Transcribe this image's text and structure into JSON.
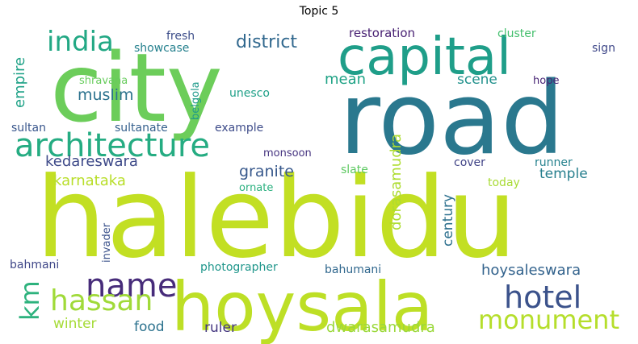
{
  "chart_data": {
    "type": "wordcloud",
    "title": "Topic 5",
    "words": [
      {
        "text": "halebidu",
        "color": "#c2df23"
      },
      {
        "text": "road",
        "color": "#2a788e"
      },
      {
        "text": "city",
        "color": "#6ccd5a"
      },
      {
        "text": "hoysala",
        "color": "#bddf26"
      },
      {
        "text": "capital",
        "color": "#1f9e89"
      },
      {
        "text": "architecture",
        "color": "#25ac82"
      },
      {
        "text": "name",
        "color": "#472c7a"
      },
      {
        "text": "india",
        "color": "#22a884"
      },
      {
        "text": "hassan",
        "color": "#a0da39"
      },
      {
        "text": "hotel",
        "color": "#3b528b"
      },
      {
        "text": "monument",
        "color": "#b5de2b"
      },
      {
        "text": "km",
        "color": "#2db27d"
      },
      {
        "text": "district",
        "color": "#31688e"
      },
      {
        "text": "granite",
        "color": "#38598c"
      },
      {
        "text": "muslim",
        "color": "#2c728e"
      },
      {
        "text": "kedareswara",
        "color": "#3e4a89"
      },
      {
        "text": "karnataka",
        "color": "#b8de29"
      },
      {
        "text": "mean",
        "color": "#20a386"
      },
      {
        "text": "scene",
        "color": "#21918c"
      },
      {
        "text": "temple",
        "color": "#277f8e"
      },
      {
        "text": "hoysaleswara",
        "color": "#33638d"
      },
      {
        "text": "dwarasamudra",
        "color": "#9bd93c"
      },
      {
        "text": "dorasamudra",
        "color": "#addc30"
      },
      {
        "text": "century",
        "color": "#2d708e"
      },
      {
        "text": "empire",
        "color": "#1fa287"
      },
      {
        "text": "food",
        "color": "#2c728e"
      },
      {
        "text": "ruler",
        "color": "#453781"
      },
      {
        "text": "winter",
        "color": "#a5db36"
      },
      {
        "text": "restoration",
        "color": "#482173"
      },
      {
        "text": "cluster",
        "color": "#46c06f"
      },
      {
        "text": "sign",
        "color": "#3f4889"
      },
      {
        "text": "fresh",
        "color": "#3d4e8a"
      },
      {
        "text": "showcase",
        "color": "#26818e"
      },
      {
        "text": "shravana",
        "color": "#67cc5c"
      },
      {
        "text": "belgola",
        "color": "#1f9a8a"
      },
      {
        "text": "unesco",
        "color": "#1fa088"
      },
      {
        "text": "hope",
        "color": "#482475"
      },
      {
        "text": "sultan",
        "color": "#39568c"
      },
      {
        "text": "sultanate",
        "color": "#35608d"
      },
      {
        "text": "example",
        "color": "#3e4c8a"
      },
      {
        "text": "monsoon",
        "color": "#463480"
      },
      {
        "text": "cover",
        "color": "#414487"
      },
      {
        "text": "runner",
        "color": "#26828e"
      },
      {
        "text": "slate",
        "color": "#5ec962"
      },
      {
        "text": "ornate",
        "color": "#2ab07f"
      },
      {
        "text": "today",
        "color": "#a8db34"
      },
      {
        "text": "invader",
        "color": "#3b528b"
      },
      {
        "text": "bahmani",
        "color": "#3f4788"
      },
      {
        "text": "photographer",
        "color": "#1f968b"
      },
      {
        "text": "bahumani",
        "color": "#31688e"
      }
    ]
  }
}
